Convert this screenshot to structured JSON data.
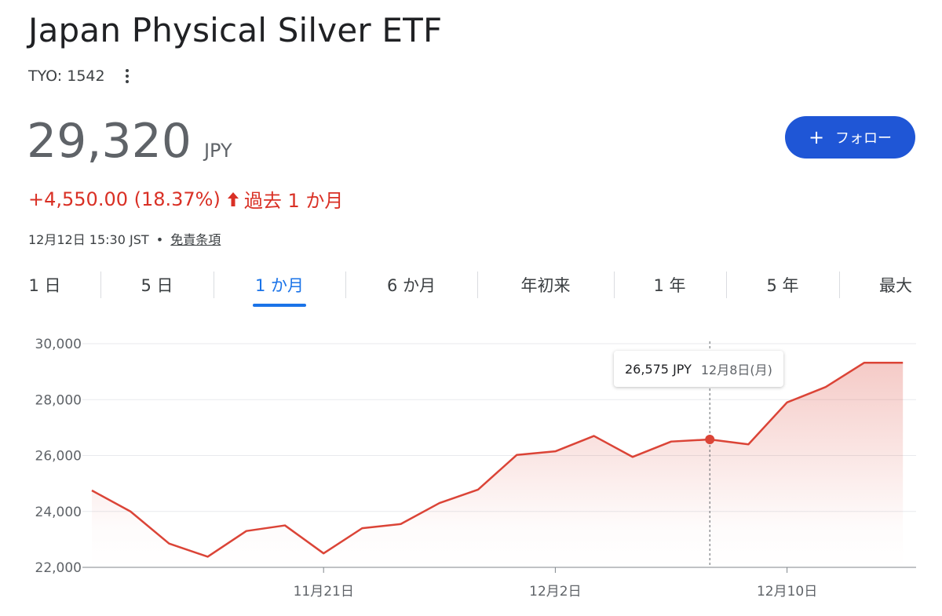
{
  "header": {
    "title": "Japan Physical Silver ETF",
    "ticker": "TYO: 1542",
    "more_icon": "more-vert-icon"
  },
  "quote": {
    "price": "29,320",
    "currency": "JPY",
    "change": "+4,550.00 (18.37%)",
    "change_direction": "up",
    "period": "過去 1 か月",
    "timestamp": "12月12日 15:30 JST",
    "separator": "•",
    "disclaimer": "免責条項",
    "change_color": "#d93025"
  },
  "follow_button": {
    "icon": "+",
    "label": "フォロー",
    "color": "#1f56d6"
  },
  "tabs": [
    {
      "label": "1 日",
      "active": false
    },
    {
      "label": "5 日",
      "active": false
    },
    {
      "label": "1 か月",
      "active": true
    },
    {
      "label": "6 か月",
      "active": false
    },
    {
      "label": "年初来",
      "active": false
    },
    {
      "label": "1 年",
      "active": false
    },
    {
      "label": "5 年",
      "active": false
    },
    {
      "label": "最大",
      "active": false
    }
  ],
  "accent_color": "#1a73e8",
  "tooltip": {
    "price": "26,575 JPY",
    "date": "12月8日(月)"
  },
  "chart_data": {
    "type": "area",
    "line_color": "#db4437",
    "ylim": [
      22000,
      30000
    ],
    "y_ticks": [
      30000,
      28000,
      26000,
      24000,
      22000
    ],
    "y_tick_labels": [
      "30,000",
      "28,000",
      "26,000",
      "24,000",
      "22,000"
    ],
    "x_tick_labels": [
      "11月21日",
      "12月2日",
      "12月10日"
    ],
    "x_tick_index": [
      6,
      12,
      18
    ],
    "grid": true,
    "series": [
      {
        "values": [
          24750,
          24000,
          22850,
          22380,
          23300,
          23500,
          22500,
          23400,
          23550,
          24300,
          24780,
          26020,
          26150,
          26700,
          25950,
          26500,
          26575,
          26400,
          27900,
          28450,
          29320,
          29320
        ],
        "highlight_index": 16
      }
    ]
  }
}
